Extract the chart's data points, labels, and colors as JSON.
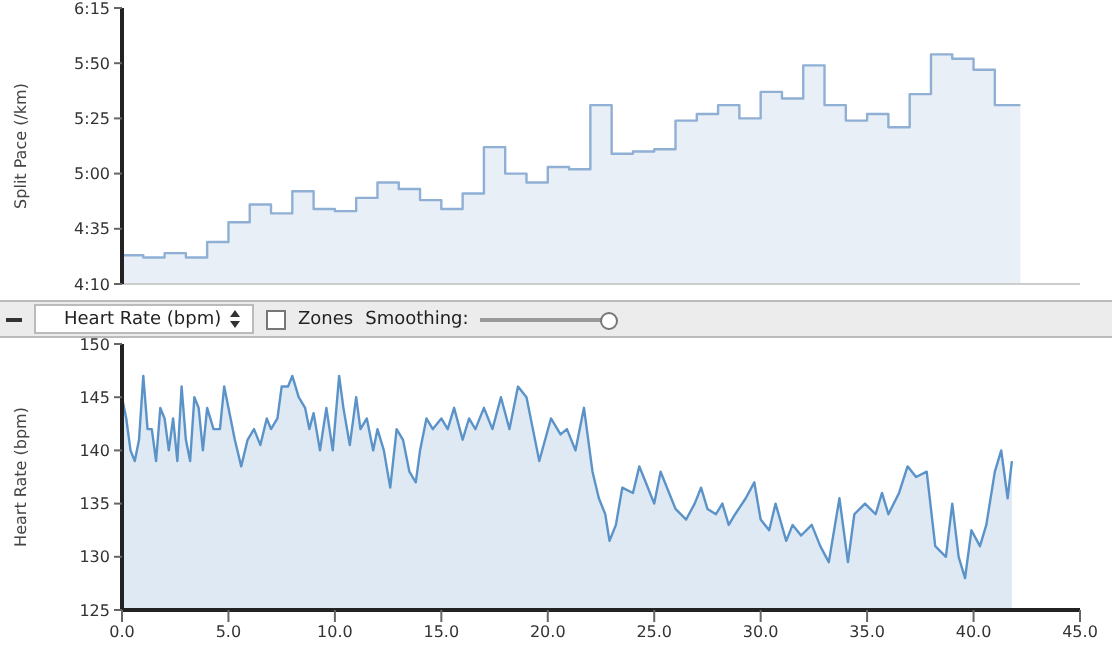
{
  "chart_data": [
    {
      "type": "area",
      "ylabel": "Split Pace (/km)",
      "color": "#8fb0d4",
      "x": [
        0,
        1,
        1,
        2,
        2,
        3,
        3,
        4,
        4,
        5,
        5,
        6,
        6,
        7,
        7,
        8,
        8,
        9,
        9,
        10,
        10,
        11,
        11,
        12,
        12,
        13,
        13,
        14,
        14,
        15,
        15,
        16,
        16,
        17,
        17,
        18,
        18,
        19,
        19,
        20,
        20,
        21,
        21,
        22,
        22,
        23,
        23,
        24,
        24,
        25,
        25,
        26,
        26,
        27,
        27,
        28,
        28,
        29,
        29,
        30,
        30,
        31,
        31,
        32,
        32,
        33,
        33,
        34,
        34,
        35,
        35,
        36,
        36,
        37,
        37,
        38,
        38,
        39,
        39,
        40,
        40,
        41,
        41,
        42.2
      ],
      "values": [
        263,
        263,
        262,
        262,
        264,
        264,
        262,
        262,
        269,
        269,
        278,
        278,
        286,
        286,
        282,
        282,
        292,
        292,
        284,
        284,
        283,
        283,
        289,
        289,
        296,
        296,
        293,
        293,
        288,
        288,
        284,
        284,
        291,
        291,
        312,
        312,
        300,
        300,
        296,
        296,
        303,
        303,
        302,
        302,
        331,
        331,
        309,
        309,
        310,
        310,
        311,
        311,
        324,
        324,
        327,
        327,
        331,
        331,
        325,
        325,
        337,
        337,
        334,
        334,
        349,
        349,
        331,
        331,
        324,
        324,
        327,
        327,
        321,
        321,
        336,
        336,
        354,
        354,
        352,
        352,
        347,
        347,
        331,
        331
      ],
      "xlim": [
        0,
        45
      ],
      "ylim": [
        250,
        375
      ],
      "yticks": [
        {
          "value": 250,
          "label": "4:10"
        },
        {
          "value": 275,
          "label": "4:35"
        },
        {
          "value": 300,
          "label": "5:00"
        },
        {
          "value": 325,
          "label": "5:25"
        },
        {
          "value": 350,
          "label": "5:50"
        },
        {
          "value": 375,
          "label": "6:15"
        }
      ],
      "tick_labels": "y"
    },
    {
      "type": "area",
      "ylabel": "Heart Rate (bpm)",
      "color": "#5b93c9",
      "annotations": [
        "Heart Rate (bpm)",
        "Zones",
        "Smoothing:"
      ],
      "x": [
        0,
        0.2,
        0.4,
        0.6,
        0.8,
        1.0,
        1.2,
        1.4,
        1.6,
        1.8,
        2.0,
        2.2,
        2.4,
        2.6,
        2.8,
        3.0,
        3.2,
        3.4,
        3.6,
        3.8,
        4.0,
        4.3,
        4.6,
        4.8,
        5.0,
        5.3,
        5.6,
        5.9,
        6.2,
        6.5,
        6.8,
        7.0,
        7.3,
        7.5,
        7.8,
        8.0,
        8.3,
        8.6,
        8.8,
        9.0,
        9.3,
        9.6,
        9.9,
        10.2,
        10.4,
        10.7,
        11.0,
        11.2,
        11.5,
        11.8,
        12.0,
        12.3,
        12.6,
        12.9,
        13.2,
        13.5,
        13.8,
        14.0,
        14.3,
        14.6,
        15.0,
        15.3,
        15.6,
        16.0,
        16.3,
        16.6,
        17.0,
        17.4,
        17.8,
        18.2,
        18.6,
        19.0,
        19.3,
        19.6,
        20.15,
        20.6,
        20.9,
        21.3,
        21.7,
        22.1,
        22.4,
        22.7,
        22.9,
        23.2,
        23.5,
        24.0,
        24.3,
        24.6,
        25.0,
        25.3,
        25.7,
        26.0,
        26.5,
        26.9,
        27.2,
        27.5,
        27.9,
        28.2,
        28.5,
        28.8,
        29.3,
        29.7,
        30.0,
        30.4,
        30.7,
        31.2,
        31.5,
        31.9,
        32.4,
        32.8,
        33.2,
        33.7,
        34.1,
        34.4,
        34.9,
        35.4,
        35.7,
        36.0,
        36.5,
        36.9,
        37.3,
        37.8,
        38.2,
        38.7,
        39.0,
        39.3,
        39.6,
        39.9,
        40.3,
        40.6,
        41.0,
        41.3,
        41.6,
        41.8
      ],
      "values": [
        145,
        143,
        140,
        139,
        141,
        147,
        142,
        142,
        139,
        144,
        143,
        140,
        143,
        139,
        146,
        141,
        139,
        145,
        144,
        140,
        144,
        142,
        142,
        146,
        144,
        141,
        138.5,
        141,
        142,
        140.5,
        143,
        142,
        143,
        146,
        146,
        147,
        145,
        144,
        142,
        143.5,
        140,
        144,
        140,
        147,
        144,
        140.5,
        145,
        142,
        143,
        140,
        142,
        140,
        136.5,
        142,
        141,
        138,
        137,
        140,
        143,
        142,
        143,
        142,
        144,
        141,
        143,
        142,
        144,
        142,
        145,
        142,
        146,
        145,
        142,
        139,
        143,
        141.5,
        142,
        140,
        144,
        138,
        135.5,
        134,
        131.5,
        133,
        136.5,
        136,
        138.5,
        137,
        135,
        138,
        136,
        134.5,
        133.5,
        135,
        136.5,
        134.5,
        134,
        135,
        133,
        134,
        135.5,
        137,
        133.5,
        132.5,
        135,
        131.5,
        133,
        132,
        133,
        131,
        129.5,
        135.5,
        129.5,
        134,
        135,
        134,
        136,
        134,
        136,
        138.5,
        137.5,
        138,
        131,
        130,
        135,
        130,
        128,
        132.5,
        131,
        133,
        138,
        140,
        135.5,
        139
      ],
      "xlim": [
        0,
        45
      ],
      "xticks": [
        {
          "value": 0,
          "label": "0.0"
        },
        {
          "value": 5,
          "label": "5.0"
        },
        {
          "value": 10,
          "label": "10.0"
        },
        {
          "value": 15,
          "label": "15.0"
        },
        {
          "value": 20,
          "label": "20.0"
        },
        {
          "value": 25,
          "label": "25.0"
        },
        {
          "value": 30,
          "label": "30.0"
        },
        {
          "value": 35,
          "label": "35.0"
        },
        {
          "value": 40,
          "label": "40.0"
        },
        {
          "value": 45,
          "label": "45.0"
        }
      ],
      "ylim": [
        125,
        150
      ],
      "yticks": [
        125,
        130,
        135,
        140,
        145,
        150
      ]
    }
  ]
}
